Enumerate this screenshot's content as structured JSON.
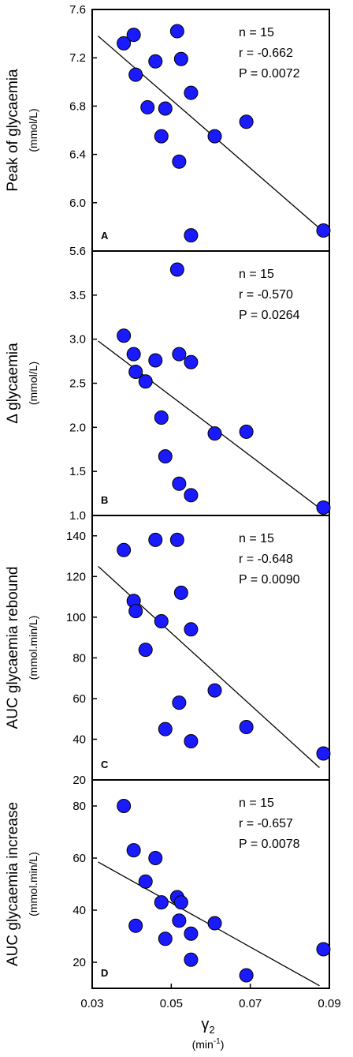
{
  "chart_data": [
    {
      "type": "scatter",
      "panel": "A",
      "ylabel": "Peak of glycaemia",
      "yunit": "(mmol/L)",
      "ylim": [
        5.6,
        7.6
      ],
      "yticks": [
        "5.6",
        "6.0",
        "6.4",
        "6.8",
        "7.2",
        "7.6"
      ],
      "stats": [
        "n = 15",
        "r = -0.662",
        "P = 0.0072"
      ],
      "points": [
        {
          "x": 0.038,
          "y": 7.32
        },
        {
          "x": 0.0405,
          "y": 7.39
        },
        {
          "x": 0.041,
          "y": 7.06
        },
        {
          "x": 0.044,
          "y": 6.79
        },
        {
          "x": 0.046,
          "y": 7.17
        },
        {
          "x": 0.0475,
          "y": 6.55
        },
        {
          "x": 0.0485,
          "y": 6.78
        },
        {
          "x": 0.0515,
          "y": 7.42
        },
        {
          "x": 0.052,
          "y": 6.34
        },
        {
          "x": 0.0525,
          "y": 7.19
        },
        {
          "x": 0.055,
          "y": 6.91
        },
        {
          "x": 0.055,
          "y": 5.73
        },
        {
          "x": 0.061,
          "y": 6.55
        },
        {
          "x": 0.069,
          "y": 6.67
        },
        {
          "x": 0.0885,
          "y": 5.77
        }
      ],
      "fit": {
        "x": [
          0.0315,
          0.0885
        ],
        "y": [
          7.38,
          5.76
        ]
      }
    },
    {
      "type": "scatter",
      "panel": "B",
      "ylabel": "Δ glycaemia",
      "yunit": "(mmol/L)",
      "ylim": [
        1.0,
        4.0
      ],
      "yticks": [
        "1.0",
        "1.5",
        "2.0",
        "2.5",
        "3.0",
        "3.5"
      ],
      "stats": [
        "n = 15",
        "r = -0.570",
        "P = 0.0264"
      ],
      "points": [
        {
          "x": 0.038,
          "y": 3.04
        },
        {
          "x": 0.0405,
          "y": 2.83
        },
        {
          "x": 0.041,
          "y": 2.63
        },
        {
          "x": 0.0435,
          "y": 2.52
        },
        {
          "x": 0.046,
          "y": 2.76
        },
        {
          "x": 0.0475,
          "y": 2.11
        },
        {
          "x": 0.0485,
          "y": 1.67
        },
        {
          "x": 0.0515,
          "y": 3.79
        },
        {
          "x": 0.052,
          "y": 2.83
        },
        {
          "x": 0.052,
          "y": 1.36
        },
        {
          "x": 0.055,
          "y": 2.74
        },
        {
          "x": 0.055,
          "y": 1.23
        },
        {
          "x": 0.061,
          "y": 1.93
        },
        {
          "x": 0.069,
          "y": 1.95
        },
        {
          "x": 0.0885,
          "y": 1.09
        }
      ],
      "fit": {
        "x": [
          0.0315,
          0.0885
        ],
        "y": [
          2.98,
          1.05
        ]
      }
    },
    {
      "type": "scatter",
      "panel": "C",
      "ylabel": "AUC glycaemia rebound",
      "yunit": "(mmol.min/L)",
      "ylim": [
        20,
        150
      ],
      "yticks": [
        "20",
        "40",
        "60",
        "80",
        "100",
        "120",
        "140"
      ],
      "stats": [
        "n = 15",
        "r = -0.648",
        "P = 0.0090"
      ],
      "points": [
        {
          "x": 0.038,
          "y": 133
        },
        {
          "x": 0.0405,
          "y": 108
        },
        {
          "x": 0.041,
          "y": 103
        },
        {
          "x": 0.0435,
          "y": 84
        },
        {
          "x": 0.046,
          "y": 138
        },
        {
          "x": 0.0475,
          "y": 98
        },
        {
          "x": 0.0485,
          "y": 45
        },
        {
          "x": 0.0515,
          "y": 138
        },
        {
          "x": 0.0525,
          "y": 112
        },
        {
          "x": 0.052,
          "y": 58
        },
        {
          "x": 0.055,
          "y": 94
        },
        {
          "x": 0.055,
          "y": 39
        },
        {
          "x": 0.061,
          "y": 64
        },
        {
          "x": 0.069,
          "y": 46
        },
        {
          "x": 0.0885,
          "y": 33
        }
      ],
      "fit": {
        "x": [
          0.0315,
          0.0875
        ],
        "y": [
          125,
          26
        ]
      }
    },
    {
      "type": "scatter",
      "panel": "D",
      "ylabel": "AUC glycaemia increase",
      "yunit": "(mmol.min/L)",
      "ylim": [
        10,
        90
      ],
      "yticks": [
        "20",
        "40",
        "60",
        "80"
      ],
      "stats": [
        "n = 15",
        "r = -0.657",
        "P = 0.0078"
      ],
      "points": [
        {
          "x": 0.038,
          "y": 80
        },
        {
          "x": 0.0405,
          "y": 63
        },
        {
          "x": 0.041,
          "y": 34
        },
        {
          "x": 0.0435,
          "y": 51
        },
        {
          "x": 0.046,
          "y": 60
        },
        {
          "x": 0.0475,
          "y": 43
        },
        {
          "x": 0.0485,
          "y": 29
        },
        {
          "x": 0.0515,
          "y": 45
        },
        {
          "x": 0.0525,
          "y": 43
        },
        {
          "x": 0.052,
          "y": 36
        },
        {
          "x": 0.055,
          "y": 31
        },
        {
          "x": 0.055,
          "y": 21
        },
        {
          "x": 0.061,
          "y": 35
        },
        {
          "x": 0.069,
          "y": 15
        },
        {
          "x": 0.0885,
          "y": 25
        }
      ],
      "fit": {
        "x": [
          0.0315,
          0.0875
        ],
        "y": [
          58.5,
          11
        ]
      }
    }
  ],
  "x_axis": {
    "xlim": [
      0.03,
      0.09
    ],
    "ticks": [
      {
        "value": 0.03,
        "label": "0.03"
      },
      {
        "value": 0.05,
        "label": "0.05"
      },
      {
        "value": 0.07,
        "label": "0.07"
      },
      {
        "value": 0.09,
        "label": "0.09"
      }
    ],
    "label_symbol": "γ",
    "label_subscript": "2",
    "label_unit": "(min",
    "label_unit_sup": "-1",
    "label_unit_close": ")"
  },
  "colors": {
    "marker_fill": "#1a1aff",
    "marker_stroke": "#000000",
    "fit_line": "#000000",
    "axis": "#000000"
  }
}
